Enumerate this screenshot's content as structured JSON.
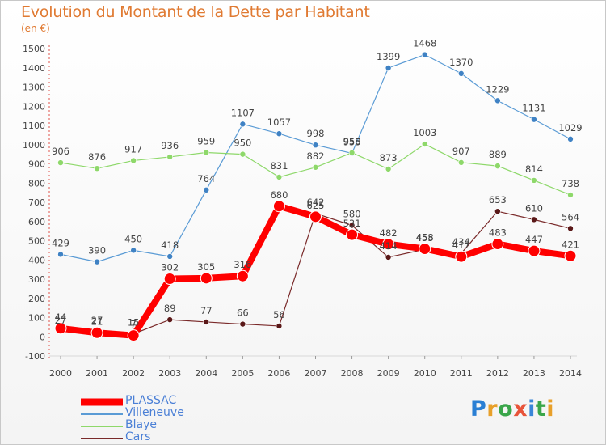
{
  "header": {
    "title": "Evolution du Montant de la Dette par Habitant",
    "subtitle": "(en €)"
  },
  "logo": {
    "text": "Proxiti"
  },
  "chart_data": {
    "type": "line",
    "title": "Evolution du Montant de la Dette par Habitant",
    "ylabel": "(en €)",
    "x": [
      "2000",
      "2001",
      "2002",
      "2003",
      "2004",
      "2005",
      "2006",
      "2007",
      "2008",
      "2009",
      "2010",
      "2011",
      "2012",
      "2013",
      "2014"
    ],
    "ylim": [
      -100,
      1500
    ],
    "yticks": [
      -100,
      0,
      100,
      200,
      300,
      400,
      500,
      600,
      700,
      800,
      900,
      1000,
      1100,
      1200,
      1300,
      1400,
      1500
    ],
    "grid": false,
    "legend_position": "bottom-left",
    "series": [
      {
        "name": "PLASSAC",
        "color": "#ff0000",
        "values": [
          44,
          21,
          7,
          302,
          305,
          316,
          680,
          625,
          531,
          482,
          458,
          417,
          483,
          447,
          421
        ]
      },
      {
        "name": "Villeneuve",
        "color": "#5a9bd5",
        "values": [
          429,
          390,
          450,
          418,
          764,
          1107,
          1057,
          998,
          955,
          1399,
          1468,
          1370,
          1229,
          1131,
          1029
        ]
      },
      {
        "name": "Blaye",
        "color": "#8ed86a",
        "values": [
          906,
          876,
          917,
          936,
          959,
          950,
          831,
          882,
          958,
          873,
          1003,
          907,
          889,
          814,
          738
        ]
      },
      {
        "name": "Cars",
        "color": "#7a2a2a",
        "values": [
          27,
          27,
          15,
          89,
          77,
          66,
          56,
          642,
          580,
          414,
          455,
          434,
          653,
          610,
          564
        ]
      }
    ]
  }
}
